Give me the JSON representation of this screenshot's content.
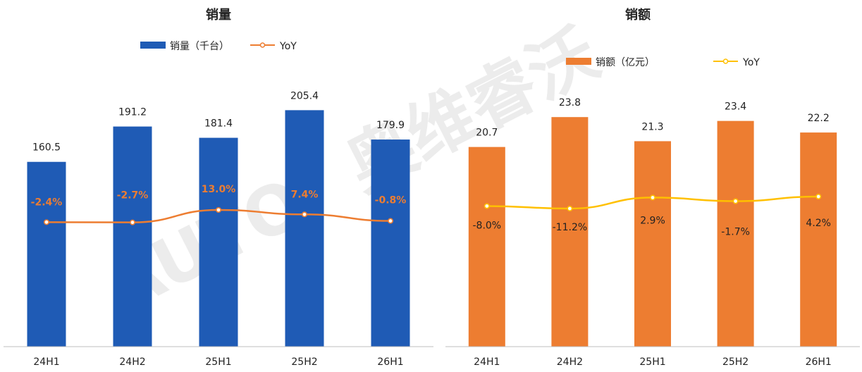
{
  "watermark": {
    "text": "AUTO|奥维睿沃",
    "latin": "AUTO",
    "cjk": "奥维睿沃"
  },
  "chart_data": [
    {
      "type": "bar",
      "title": "销量",
      "categories": [
        "24H1",
        "24H2",
        "25H1",
        "25H2",
        "26H1"
      ],
      "series": [
        {
          "name": "销量（千台）",
          "kind": "bar",
          "values": [
            160.5,
            191.2,
            181.4,
            205.4,
            179.9
          ],
          "color": "#1f5bb5"
        },
        {
          "name": "YoY",
          "kind": "line",
          "values": [
            -2.4,
            -2.7,
            13.0,
            7.4,
            -0.8
          ],
          "labels": [
            "-2.4%",
            "-2.7%",
            "13.0%",
            "7.4%",
            "-0.8%"
          ],
          "color": "#ed7d31"
        }
      ],
      "value_labels": [
        "160.5",
        "191.2",
        "181.4",
        "205.4",
        "179.9"
      ],
      "legend_position": "top",
      "grid": false
    },
    {
      "type": "bar",
      "title": "销额",
      "categories": [
        "24H1",
        "24H2",
        "25H1",
        "25H2",
        "26H1"
      ],
      "series": [
        {
          "name": "销额（亿元）",
          "kind": "bar",
          "values": [
            20.7,
            23.8,
            21.3,
            23.4,
            22.2
          ],
          "color": "#ed7d31"
        },
        {
          "name": "YoY",
          "kind": "line",
          "values": [
            -8.0,
            -11.2,
            2.9,
            -1.7,
            4.2
          ],
          "labels": [
            "-8.0%",
            "-11.2%",
            "2.9%",
            "-1.7%",
            "4.2%"
          ],
          "color": "#ffc000"
        }
      ],
      "value_labels": [
        "20.7",
        "23.8",
        "21.3",
        "23.4",
        "22.2"
      ],
      "legend_position": "top",
      "grid": false
    }
  ]
}
